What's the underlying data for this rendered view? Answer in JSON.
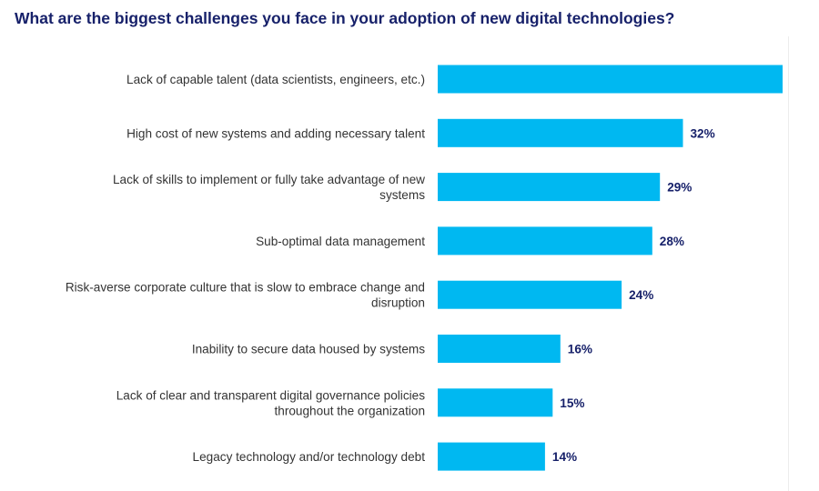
{
  "chart_data": {
    "type": "bar",
    "orientation": "horizontal",
    "title": "What are the biggest challenges you face in your adoption of new digital technologies?",
    "categories": [
      [
        "Lack of capable talent (data scientists, engineers, etc.)"
      ],
      [
        "High cost of new systems and adding necessary talent"
      ],
      [
        "Lack of skills to implement or fully take advantage of new",
        "systems"
      ],
      [
        "Sub-optimal data management"
      ],
      [
        "Risk-averse corporate culture that is slow to embrace change and",
        "disruption"
      ],
      [
        "Inability to secure data housed by systems"
      ],
      [
        "Lack of clear and transparent digital governance policies",
        "throughout the organization"
      ],
      [
        "Legacy technology and/or technology debt"
      ]
    ],
    "values": [
      45,
      32,
      29,
      28,
      24,
      16,
      15,
      14
    ],
    "value_labels": [
      "",
      "32%",
      "29%",
      "28%",
      "24%",
      "16%",
      "15%",
      "14%"
    ],
    "unit": "%",
    "bar_color": "#00b8f1",
    "title_color": "#17216a",
    "value_label_color": "#17216a",
    "grid": false,
    "legend": "none"
  }
}
